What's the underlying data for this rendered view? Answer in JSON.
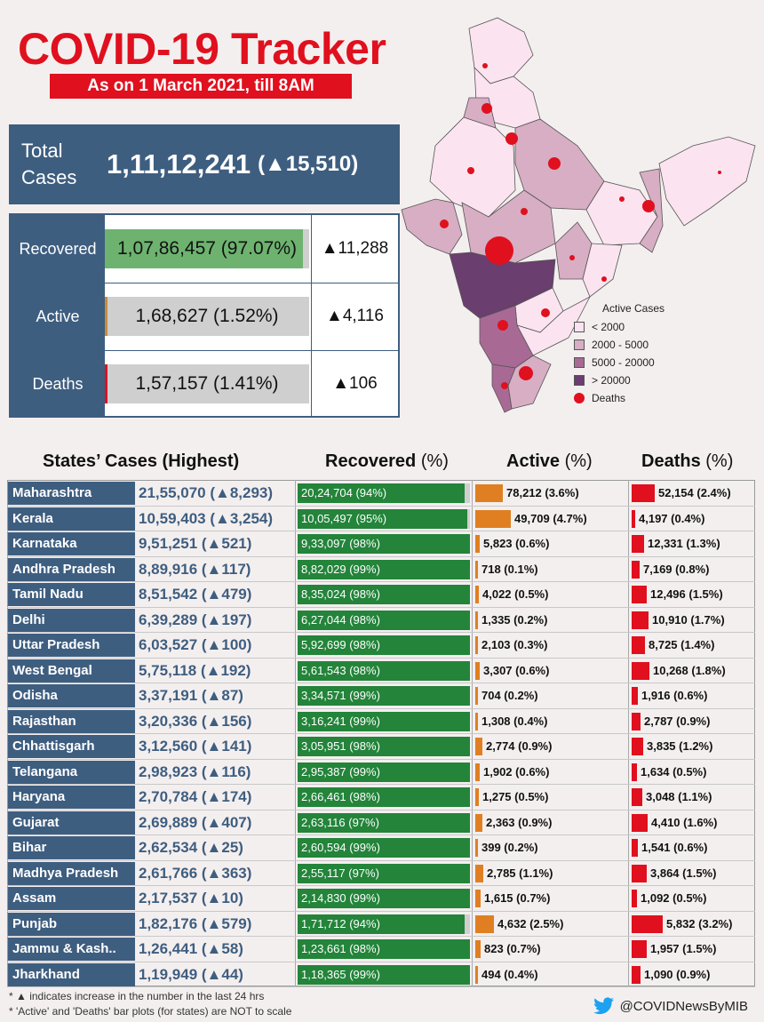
{
  "header": {
    "title": "COVID-19 Tracker",
    "subtitle": "As on 1 March 2021, till 8AM"
  },
  "total": {
    "label_line1": "Total",
    "label_line2": "Cases",
    "value": "1,11,12,241",
    "delta": "(▲15,510)"
  },
  "summary": [
    {
      "label": "Recovered",
      "value": "1,07,86,457 (97.07%)",
      "delta": "▲11,288",
      "fraction": 0.9707,
      "color": "#6db36f"
    },
    {
      "label": "Active",
      "value": "1,68,627 (1.52%)",
      "delta": "▲4,116",
      "fraction": 0.0152,
      "color": "#c98a3e"
    },
    {
      "label": "Deaths",
      "value": "1,57,157 (1.41%)",
      "delta": "▲106",
      "fraction": 0.0141,
      "color": "#e0101e"
    }
  ],
  "legend": {
    "title": "Active Cases",
    "items": [
      {
        "label": "< 2000",
        "color": "#fce3f0"
      },
      {
        "label": "2000 - 5000",
        "color": "#d7aec3"
      },
      {
        "label": "5000 - 20000",
        "color": "#a86a95"
      },
      {
        "label": "> 20000",
        "color": "#6a3e6e"
      }
    ],
    "deaths_label": "Deaths"
  },
  "table_headers": {
    "states": "States’ Cases (Highest)",
    "recovered": "Recovered",
    "active": "Active",
    "deaths": "Deaths",
    "pct": "(%)"
  },
  "chart_data": {
    "type": "bar",
    "title": "States’ Cases (Highest)",
    "categories": [
      "Maharashtra",
      "Kerala",
      "Karnataka",
      "Andhra Pradesh",
      "Tamil Nadu",
      "Delhi",
      "Uttar Pradesh",
      "West Bengal",
      "Odisha",
      "Rajasthan",
      "Chhattisgarh",
      "Telangana",
      "Haryana",
      "Gujarat",
      "Bihar",
      "Madhya Pradesh",
      "Assam",
      "Punjab",
      "Jammu & Kash..",
      "Jharkhand"
    ],
    "rows": [
      {
        "state": "Maharashtra",
        "total": "21,55,070 (▲8,293)",
        "recovered": "20,24,704 (94%)",
        "rec_pct": 94,
        "active": "78,212 (3.6%)",
        "active_pct": 3.6,
        "deaths": "52,154 (2.4%)",
        "death_pct": 2.4
      },
      {
        "state": "Kerala",
        "total": "10,59,403 (▲3,254)",
        "recovered": "10,05,497 (95%)",
        "rec_pct": 95,
        "active": "49,709 (4.7%)",
        "active_pct": 4.7,
        "deaths": "4,197 (0.4%)",
        "death_pct": 0.4
      },
      {
        "state": "Karnataka",
        "total": "9,51,251 (▲521)",
        "recovered": "9,33,097 (98%)",
        "rec_pct": 98,
        "active": "5,823 (0.6%)",
        "active_pct": 0.6,
        "deaths": "12,331 (1.3%)",
        "death_pct": 1.3
      },
      {
        "state": "Andhra Pradesh",
        "total": "8,89,916 (▲117)",
        "recovered": "8,82,029 (99%)",
        "rec_pct": 99,
        "active": "718 (0.1%)",
        "active_pct": 0.1,
        "deaths": "7,169 (0.8%)",
        "death_pct": 0.8
      },
      {
        "state": "Tamil Nadu",
        "total": "8,51,542 (▲479)",
        "recovered": "8,35,024 (98%)",
        "rec_pct": 98,
        "active": "4,022 (0.5%)",
        "active_pct": 0.5,
        "deaths": "12,496 (1.5%)",
        "death_pct": 1.5
      },
      {
        "state": "Delhi",
        "total": "6,39,289 (▲197)",
        "recovered": "6,27,044 (98%)",
        "rec_pct": 98,
        "active": "1,335 (0.2%)",
        "active_pct": 0.2,
        "deaths": "10,910 (1.7%)",
        "death_pct": 1.7
      },
      {
        "state": "Uttar Pradesh",
        "total": "6,03,527 (▲100)",
        "recovered": "5,92,699 (98%)",
        "rec_pct": 98,
        "active": "2,103 (0.3%)",
        "active_pct": 0.3,
        "deaths": "8,725 (1.4%)",
        "death_pct": 1.4
      },
      {
        "state": "West Bengal",
        "total": "5,75,118 (▲192)",
        "recovered": "5,61,543 (98%)",
        "rec_pct": 98,
        "active": "3,307 (0.6%)",
        "active_pct": 0.6,
        "deaths": "10,268 (1.8%)",
        "death_pct": 1.8
      },
      {
        "state": "Odisha",
        "total": "3,37,191 (▲87)",
        "recovered": "3,34,571 (99%)",
        "rec_pct": 99,
        "active": "704 (0.2%)",
        "active_pct": 0.2,
        "deaths": "1,916 (0.6%)",
        "death_pct": 0.6
      },
      {
        "state": "Rajasthan",
        "total": "3,20,336 (▲156)",
        "recovered": "3,16,241 (99%)",
        "rec_pct": 99,
        "active": "1,308 (0.4%)",
        "active_pct": 0.4,
        "deaths": "2,787 (0.9%)",
        "death_pct": 0.9
      },
      {
        "state": "Chhattisgarh",
        "total": "3,12,560 (▲141)",
        "recovered": "3,05,951 (98%)",
        "rec_pct": 98,
        "active": "2,774 (0.9%)",
        "active_pct": 0.9,
        "deaths": "3,835 (1.2%)",
        "death_pct": 1.2
      },
      {
        "state": "Telangana",
        "total": "2,98,923 (▲116)",
        "recovered": "2,95,387 (99%)",
        "rec_pct": 99,
        "active": "1,902 (0.6%)",
        "active_pct": 0.6,
        "deaths": "1,634 (0.5%)",
        "death_pct": 0.5
      },
      {
        "state": "Haryana",
        "total": "2,70,784 (▲174)",
        "recovered": "2,66,461 (98%)",
        "rec_pct": 98,
        "active": "1,275 (0.5%)",
        "active_pct": 0.5,
        "deaths": "3,048 (1.1%)",
        "death_pct": 1.1
      },
      {
        "state": "Gujarat",
        "total": "2,69,889 (▲407)",
        "recovered": "2,63,116 (97%)",
        "rec_pct": 97,
        "active": "2,363 (0.9%)",
        "active_pct": 0.9,
        "deaths": "4,410 (1.6%)",
        "death_pct": 1.6
      },
      {
        "state": "Bihar",
        "total": "2,62,534 (▲25)",
        "recovered": "2,60,594 (99%)",
        "rec_pct": 99,
        "active": "399 (0.2%)",
        "active_pct": 0.2,
        "deaths": "1,541 (0.6%)",
        "death_pct": 0.6
      },
      {
        "state": "Madhya Pradesh",
        "total": "2,61,766 (▲363)",
        "recovered": "2,55,117 (97%)",
        "rec_pct": 97,
        "active": "2,785 (1.1%)",
        "active_pct": 1.1,
        "deaths": "3,864 (1.5%)",
        "death_pct": 1.5
      },
      {
        "state": "Assam",
        "total": "2,17,537 (▲10)",
        "recovered": "2,14,830 (99%)",
        "rec_pct": 99,
        "active": "1,615 (0.7%)",
        "active_pct": 0.7,
        "deaths": "1,092 (0.5%)",
        "death_pct": 0.5
      },
      {
        "state": "Punjab",
        "total": "1,82,176 (▲579)",
        "recovered": "1,71,712 (94%)",
        "rec_pct": 94,
        "active": "4,632 (2.5%)",
        "active_pct": 2.5,
        "deaths": "5,832 (3.2%)",
        "death_pct": 3.2
      },
      {
        "state": "Jammu & Kash..",
        "total": "1,26,441 (▲58)",
        "recovered": "1,23,661 (98%)",
        "rec_pct": 98,
        "active": "823 (0.7%)",
        "active_pct": 0.7,
        "deaths": "1,957 (1.5%)",
        "death_pct": 1.5
      },
      {
        "state": "Jharkhand",
        "total": "1,19,949 (▲44)",
        "recovered": "1,18,365 (99%)",
        "rec_pct": 99,
        "active": "494 (0.4%)",
        "active_pct": 0.4,
        "deaths": "1,090 (0.9%)",
        "death_pct": 0.9
      }
    ]
  },
  "footer": {
    "note1": "* ▲ indicates increase in the number in the last 24 hrs",
    "note2": "* 'Active' and 'Deaths' bar plots (for states) are NOT to scale",
    "handle": "@COVIDNewsByMIB"
  },
  "colors": {
    "brand_red": "#e0101e",
    "navy": "#3e5e80",
    "recovered_green": "#23843a",
    "active_orange": "#e07f22"
  }
}
